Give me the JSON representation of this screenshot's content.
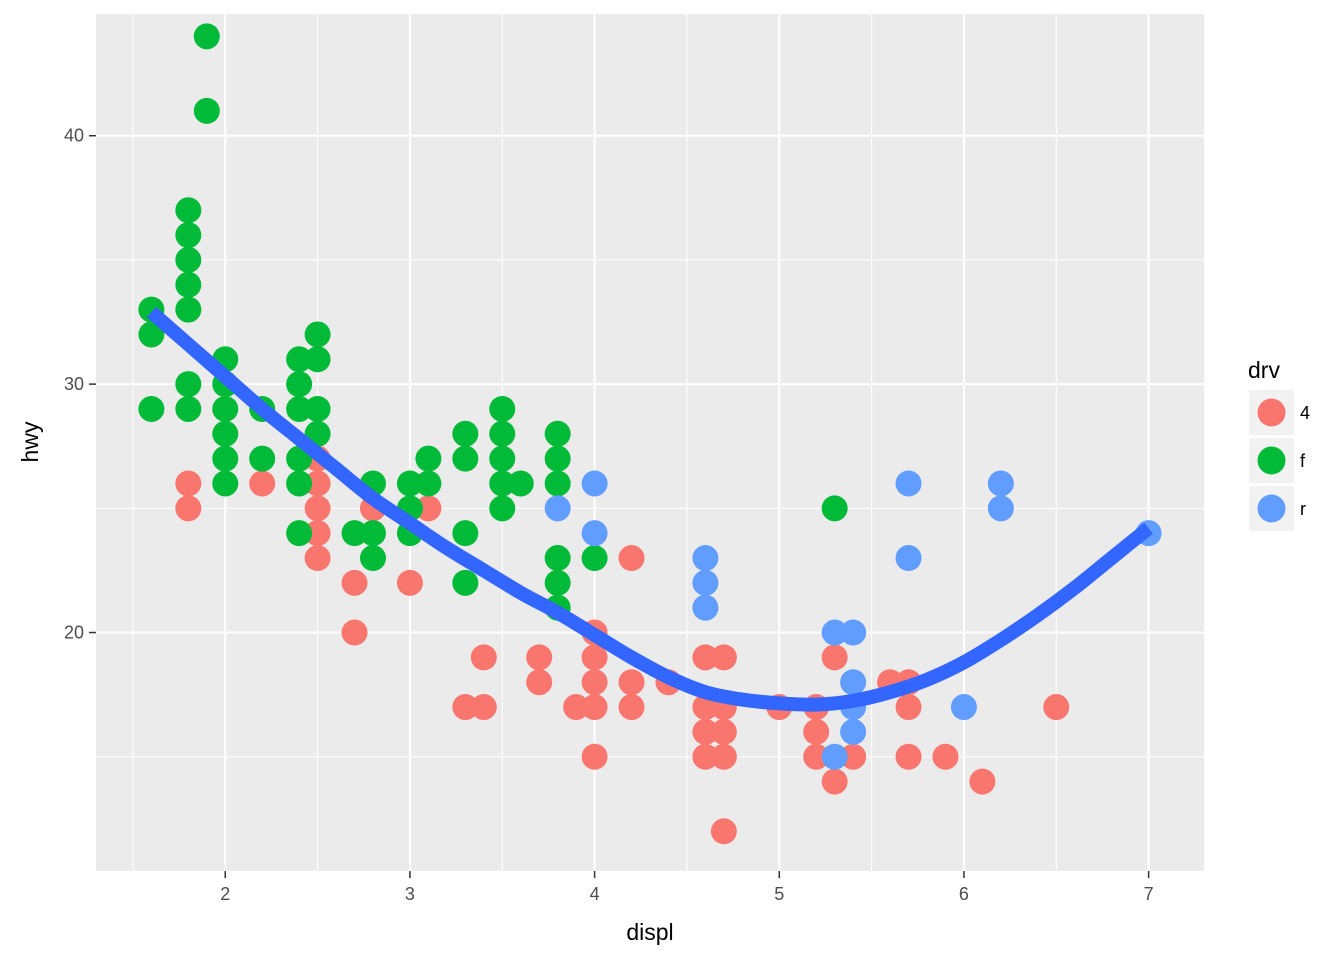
{
  "chart_data": {
    "type": "scatter",
    "xlabel": "displ",
    "ylabel": "hwy",
    "xlim": [
      1.3,
      7.3
    ],
    "ylim": [
      10.4,
      44.9
    ],
    "x_ticks": [
      2,
      3,
      4,
      5,
      6,
      7
    ],
    "y_ticks": [
      20,
      30,
      40
    ],
    "grid": true,
    "legend": {
      "title": "drv",
      "placement": "right",
      "entries": [
        {
          "label": "4",
          "color": "#F8766D"
        },
        {
          "label": "f",
          "color": "#00BA38"
        },
        {
          "label": "r",
          "color": "#619CFF"
        }
      ]
    },
    "series": [
      {
        "name": "4",
        "color": "#F8766D",
        "points": [
          [
            1.8,
            26
          ],
          [
            1.8,
            25
          ],
          [
            2.2,
            26
          ],
          [
            2.5,
            27
          ],
          [
            2.5,
            26
          ],
          [
            2.5,
            25
          ],
          [
            2.5,
            24
          ],
          [
            2.5,
            23
          ],
          [
            2.7,
            22
          ],
          [
            2.7,
            20
          ],
          [
            2.8,
            25
          ],
          [
            3.0,
            22
          ],
          [
            3.1,
            25
          ],
          [
            3.3,
            17
          ],
          [
            3.4,
            19
          ],
          [
            3.4,
            17
          ],
          [
            3.7,
            19
          ],
          [
            3.7,
            18
          ],
          [
            3.9,
            17
          ],
          [
            4.0,
            20
          ],
          [
            4.0,
            19
          ],
          [
            4.0,
            18
          ],
          [
            4.0,
            17
          ],
          [
            4.0,
            15
          ],
          [
            4.2,
            23
          ],
          [
            4.2,
            18
          ],
          [
            4.2,
            17
          ],
          [
            4.4,
            18
          ],
          [
            4.6,
            19
          ],
          [
            4.6,
            17
          ],
          [
            4.6,
            16
          ],
          [
            4.6,
            15
          ],
          [
            4.7,
            19
          ],
          [
            4.7,
            17
          ],
          [
            4.7,
            16
          ],
          [
            4.7,
            15
          ],
          [
            4.7,
            12
          ],
          [
            5.0,
            17
          ],
          [
            5.2,
            17
          ],
          [
            5.2,
            16
          ],
          [
            5.2,
            15
          ],
          [
            5.3,
            19
          ],
          [
            5.3,
            14
          ],
          [
            5.4,
            15
          ],
          [
            5.6,
            18
          ],
          [
            5.7,
            18
          ],
          [
            5.7,
            17
          ],
          [
            5.7,
            15
          ],
          [
            5.9,
            15
          ],
          [
            6.1,
            14
          ],
          [
            6.5,
            17
          ]
        ]
      },
      {
        "name": "f",
        "color": "#00BA38",
        "points": [
          [
            1.6,
            33
          ],
          [
            1.6,
            32
          ],
          [
            1.6,
            29
          ],
          [
            1.8,
            37
          ],
          [
            1.8,
            36
          ],
          [
            1.8,
            35
          ],
          [
            1.8,
            34
          ],
          [
            1.8,
            33
          ],
          [
            1.8,
            30
          ],
          [
            1.8,
            29
          ],
          [
            1.9,
            44
          ],
          [
            1.9,
            41
          ],
          [
            2.0,
            31
          ],
          [
            2.0,
            30
          ],
          [
            2.0,
            29
          ],
          [
            2.0,
            28
          ],
          [
            2.0,
            27
          ],
          [
            2.0,
            26
          ],
          [
            2.2,
            29
          ],
          [
            2.2,
            27
          ],
          [
            2.4,
            31
          ],
          [
            2.4,
            30
          ],
          [
            2.4,
            29
          ],
          [
            2.4,
            27
          ],
          [
            2.4,
            26
          ],
          [
            2.4,
            24
          ],
          [
            2.5,
            32
          ],
          [
            2.5,
            31
          ],
          [
            2.5,
            29
          ],
          [
            2.5,
            28
          ],
          [
            2.7,
            24
          ],
          [
            2.8,
            26
          ],
          [
            2.8,
            24
          ],
          [
            2.8,
            23
          ],
          [
            3.0,
            26
          ],
          [
            3.0,
            25
          ],
          [
            3.0,
            24
          ],
          [
            3.1,
            27
          ],
          [
            3.1,
            26
          ],
          [
            3.3,
            28
          ],
          [
            3.3,
            27
          ],
          [
            3.3,
            24
          ],
          [
            3.3,
            22
          ],
          [
            3.5,
            29
          ],
          [
            3.5,
            28
          ],
          [
            3.5,
            27
          ],
          [
            3.5,
            26
          ],
          [
            3.5,
            25
          ],
          [
            3.6,
            26
          ],
          [
            3.8,
            28
          ],
          [
            3.8,
            27
          ],
          [
            3.8,
            26
          ],
          [
            3.8,
            23
          ],
          [
            3.8,
            22
          ],
          [
            3.8,
            21
          ],
          [
            4.0,
            23
          ],
          [
            5.3,
            25
          ]
        ]
      },
      {
        "name": "r",
        "color": "#619CFF",
        "points": [
          [
            3.8,
            25
          ],
          [
            4.0,
            26
          ],
          [
            4.0,
            24
          ],
          [
            4.6,
            23
          ],
          [
            4.6,
            22
          ],
          [
            4.6,
            21
          ],
          [
            5.3,
            20
          ],
          [
            5.3,
            15
          ],
          [
            5.4,
            20
          ],
          [
            5.4,
            18
          ],
          [
            5.4,
            17
          ],
          [
            5.4,
            16
          ],
          [
            5.7,
            26
          ],
          [
            5.7,
            23
          ],
          [
            6.0,
            17
          ],
          [
            6.2,
            26
          ],
          [
            6.2,
            25
          ],
          [
            7.0,
            24
          ]
        ]
      }
    ],
    "smooth": {
      "color": "#3366FF",
      "points": [
        [
          1.6,
          32.9
        ],
        [
          1.8,
          31.6
        ],
        [
          2.0,
          30.3
        ],
        [
          2.2,
          29.0
        ],
        [
          2.4,
          27.8
        ],
        [
          2.6,
          26.6
        ],
        [
          2.8,
          25.4
        ],
        [
          3.0,
          24.4
        ],
        [
          3.2,
          23.4
        ],
        [
          3.4,
          22.5
        ],
        [
          3.6,
          21.6
        ],
        [
          3.8,
          20.8
        ],
        [
          4.0,
          19.9
        ],
        [
          4.2,
          19.0
        ],
        [
          4.4,
          18.2
        ],
        [
          4.6,
          17.6
        ],
        [
          4.8,
          17.3
        ],
        [
          5.0,
          17.15
        ],
        [
          5.2,
          17.1
        ],
        [
          5.4,
          17.25
        ],
        [
          5.6,
          17.6
        ],
        [
          5.8,
          18.1
        ],
        [
          6.0,
          18.8
        ],
        [
          6.2,
          19.7
        ],
        [
          6.4,
          20.7
        ],
        [
          6.6,
          21.8
        ],
        [
          6.8,
          23.0
        ],
        [
          7.0,
          24.2
        ]
      ]
    }
  }
}
